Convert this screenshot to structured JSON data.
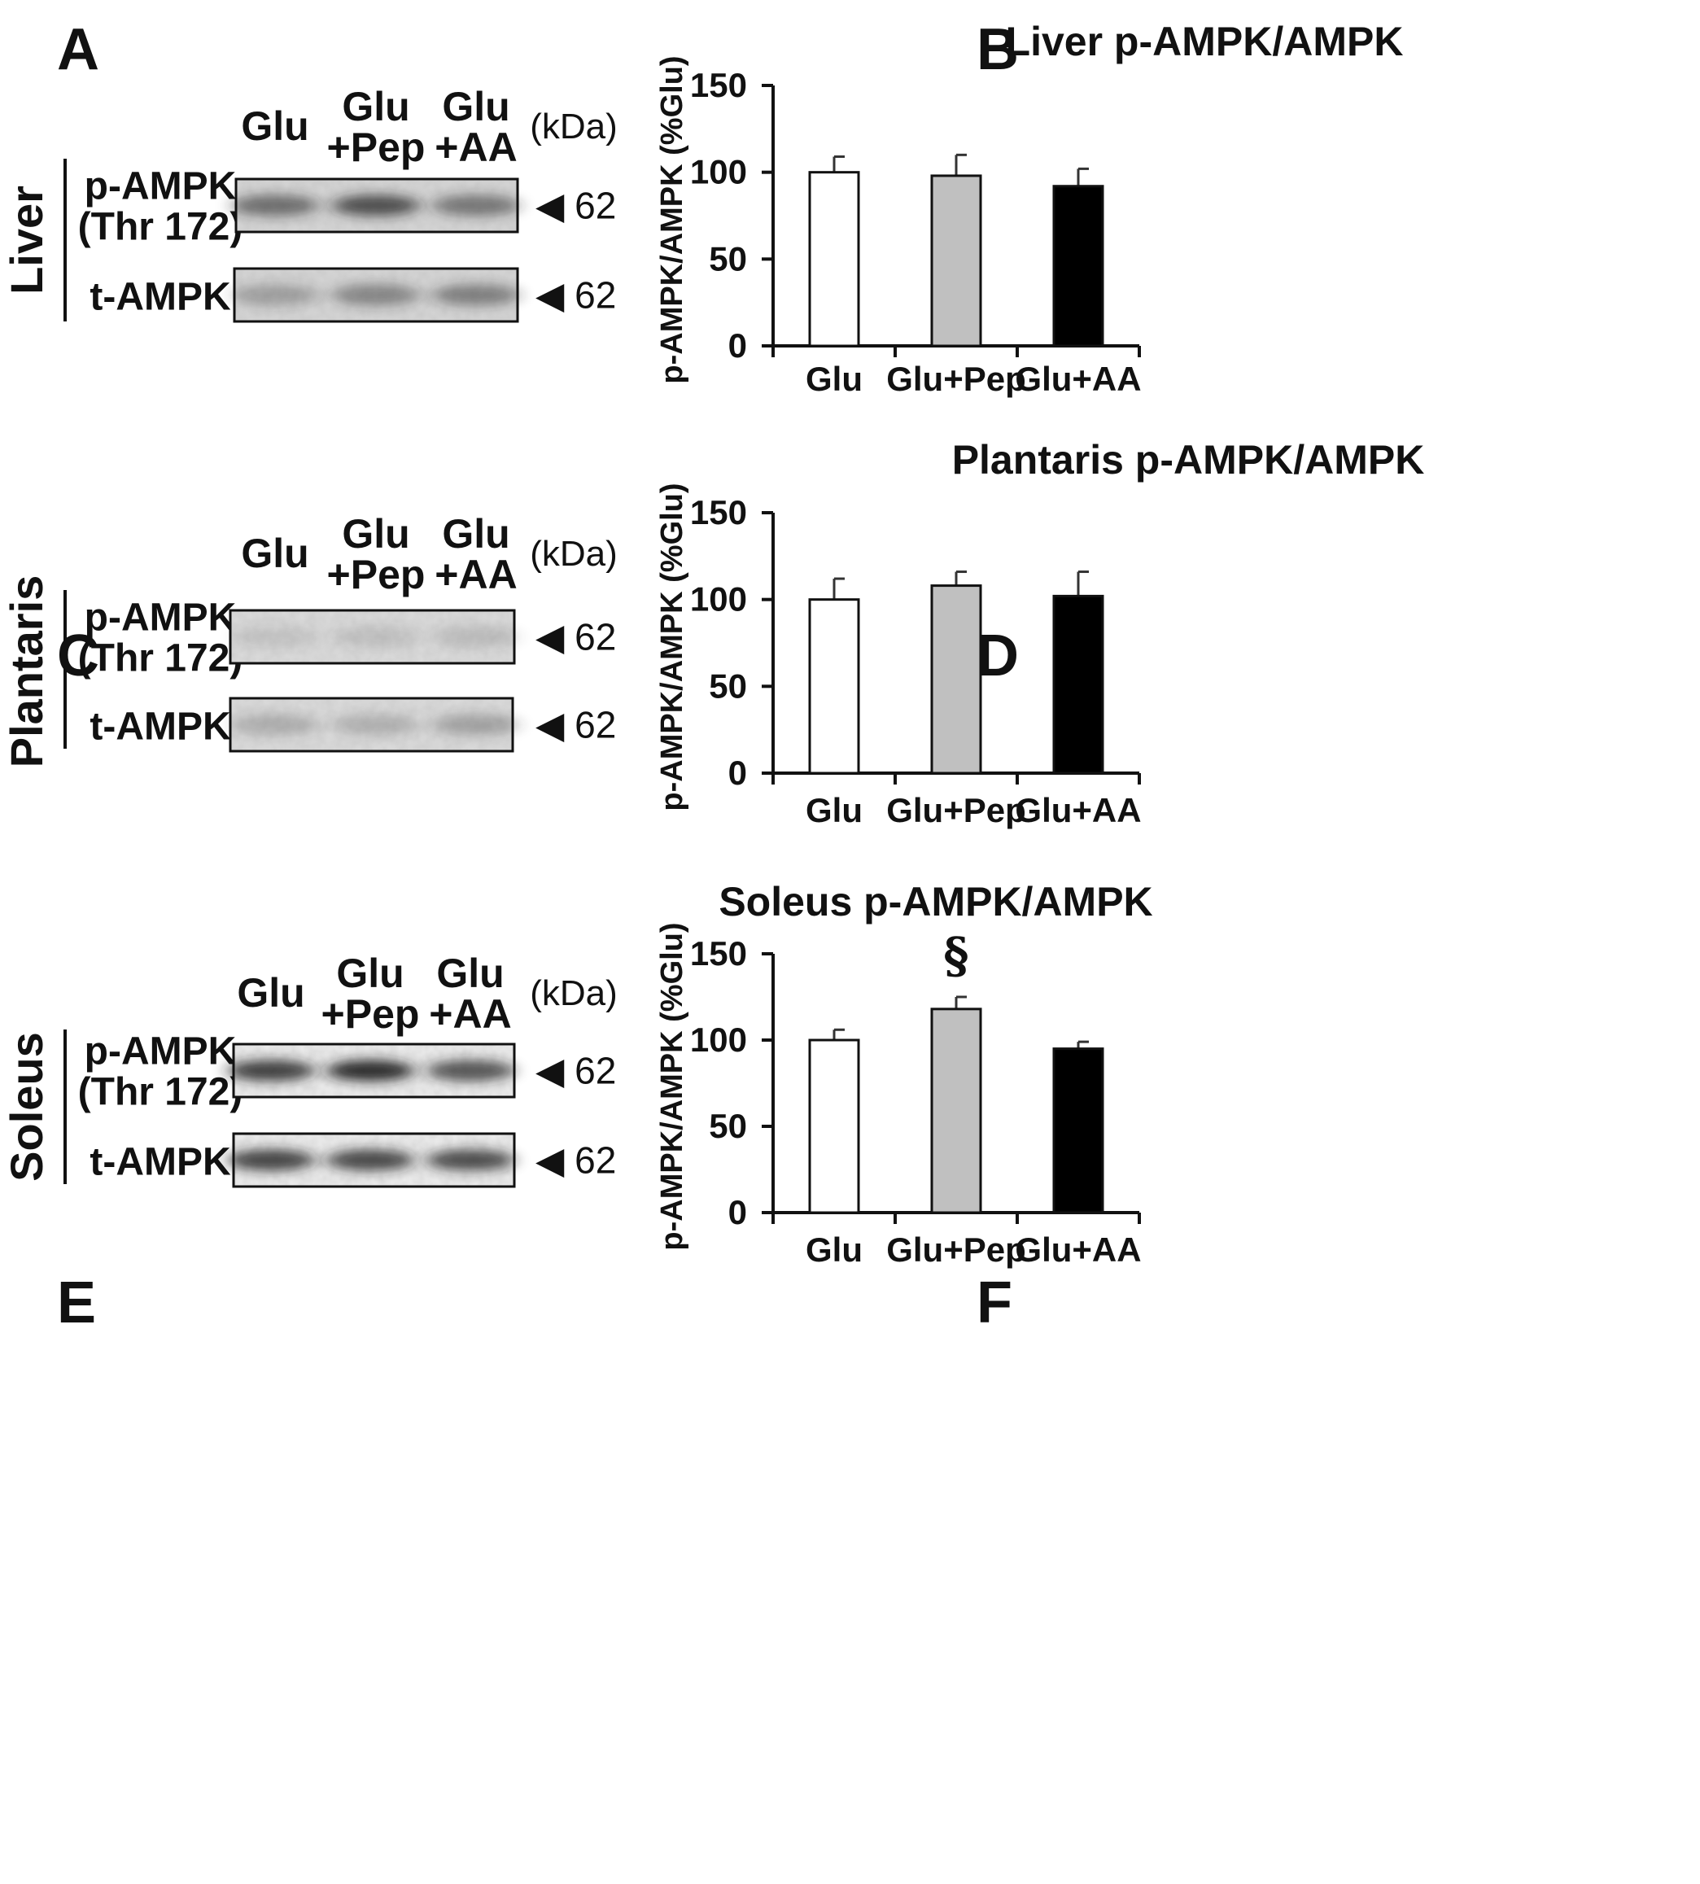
{
  "panels": {
    "A": "A",
    "B": "B",
    "C": "C",
    "D": "D",
    "E": "E",
    "F": "F"
  },
  "blots": [
    {
      "tissue": "Liver",
      "lanes": [
        [
          "Glu"
        ],
        [
          "Glu",
          "+Pep"
        ],
        [
          "Glu",
          "+AA"
        ]
      ],
      "kda": "(kDa)",
      "rows": [
        {
          "label": [
            "p-AMPK",
            "(Thr 172)"
          ],
          "marker": "◀ 62"
        },
        {
          "label": [
            "t-AMPK"
          ],
          "marker": "◀ 62"
        }
      ],
      "band_intensity": [
        [
          0.55,
          0.72,
          0.5
        ],
        [
          0.28,
          0.42,
          0.45
        ]
      ]
    },
    {
      "tissue": "Plantaris",
      "lanes": [
        [
          "Glu"
        ],
        [
          "Glu",
          "+Pep"
        ],
        [
          "Glu",
          "+AA"
        ]
      ],
      "kda": "(kDa)",
      "rows": [
        {
          "label": [
            "p-AMPK",
            "(Thr 172)"
          ],
          "marker": "◀ 62"
        },
        {
          "label": [
            "t-AMPK"
          ],
          "marker": "◀ 62"
        }
      ],
      "band_intensity": [
        [
          0.1,
          0.12,
          0.14
        ],
        [
          0.22,
          0.2,
          0.28
        ]
      ]
    },
    {
      "tissue": "Soleus",
      "lanes": [
        [
          "Glu"
        ],
        [
          "Glu",
          "+Pep"
        ],
        [
          "Glu",
          "+AA"
        ]
      ],
      "kda": "(kDa)",
      "rows": [
        {
          "label": [
            "p-AMPK",
            "(Thr 172)"
          ],
          "marker": "◀ 62"
        },
        {
          "label": [
            "t-AMPK"
          ],
          "marker": "◀ 62"
        }
      ],
      "band_intensity": [
        [
          0.82,
          0.92,
          0.72
        ],
        [
          0.8,
          0.78,
          0.76
        ]
      ]
    }
  ],
  "chart_data": [
    {
      "type": "bar",
      "title": "Liver p-AMPK/AMPK",
      "ylabel": "p-AMPK/AMPK (%Glu)",
      "xlabel": "",
      "categories": [
        "Glu",
        "Glu+Pep",
        "Glu+AA"
      ],
      "values": [
        100,
        98,
        92
      ],
      "errors": [
        9,
        12,
        10
      ],
      "ylim": [
        0,
        150
      ],
      "yticks": [
        0,
        50,
        100,
        150
      ],
      "colors": [
        "#ffffff",
        "#c0c0c0",
        "#000000"
      ],
      "annotations": []
    },
    {
      "type": "bar",
      "title": "Plantaris p-AMPK/AMPK",
      "ylabel": "p-AMPK/AMPK (%Glu)",
      "xlabel": "",
      "categories": [
        "Glu",
        "Glu+Pep",
        "Glu+AA"
      ],
      "values": [
        100,
        108,
        102
      ],
      "errors": [
        12,
        8,
        14
      ],
      "ylim": [
        0,
        150
      ],
      "yticks": [
        0,
        50,
        100,
        150
      ],
      "colors": [
        "#ffffff",
        "#c0c0c0",
        "#000000"
      ],
      "annotations": []
    },
    {
      "type": "bar",
      "title": "Soleus p-AMPK/AMPK",
      "ylabel": "p-AMPK/AMPK (%Glu)",
      "xlabel": "",
      "categories": [
        "Glu",
        "Glu+Pep",
        "Glu+AA"
      ],
      "values": [
        100,
        118,
        95
      ],
      "errors": [
        6,
        7,
        4
      ],
      "ylim": [
        0,
        150
      ],
      "yticks": [
        0,
        50,
        100,
        150
      ],
      "colors": [
        "#ffffff",
        "#c0c0c0",
        "#000000"
      ],
      "annotations": [
        {
          "category": "Glu+Pep",
          "text": "§"
        }
      ]
    }
  ]
}
